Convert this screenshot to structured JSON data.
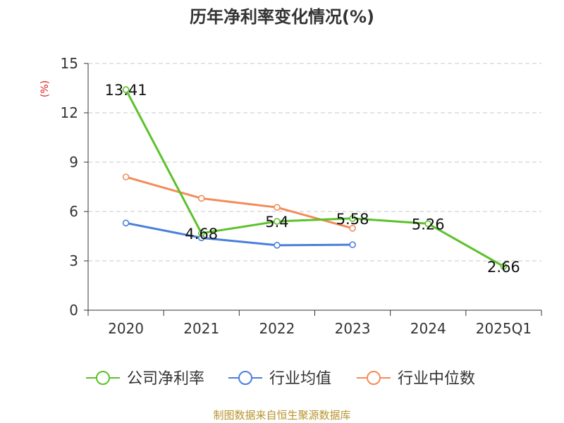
{
  "chart_data": {
    "type": "line",
    "title": "历年净利率变化情况(%)",
    "ylabel": "(%)",
    "xlabel": "",
    "ylim": [
      0,
      15
    ],
    "yticks": [
      0,
      3,
      6,
      9,
      12,
      15
    ],
    "grid": true,
    "legend_position": "bottom",
    "categories": [
      "2020",
      "2021",
      "2022",
      "2023",
      "2024",
      "2025Q1"
    ],
    "series": [
      {
        "name": "公司净利率",
        "color": "#5cc12a",
        "values": [
          13.41,
          4.68,
          5.4,
          5.58,
          5.26,
          2.66
        ],
        "labels": [
          "13.41",
          "4.68",
          "5.4",
          "5.58",
          "5.26",
          "2.66"
        ]
      },
      {
        "name": "行业均值",
        "color": "#4b7fdb",
        "values": [
          5.3,
          4.4,
          3.95,
          3.98,
          null,
          null
        ]
      },
      {
        "name": "行业中位数",
        "color": "#f28c5a",
        "values": [
          8.1,
          6.8,
          6.25,
          4.98,
          null,
          null
        ]
      }
    ]
  },
  "source": "制图数据来自恒生聚源数据库"
}
